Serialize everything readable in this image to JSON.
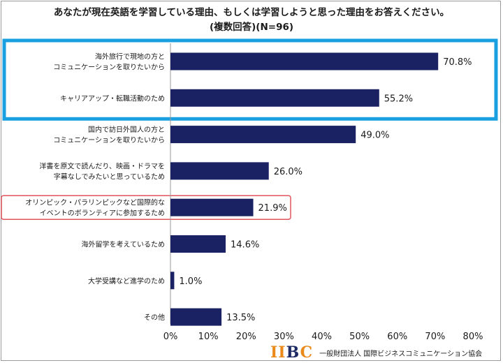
{
  "title": "あなたが現在英語を学習している理由、もしくは学習しようと思った理由をお答えください。",
  "subtitle": "(複数回答)(N=96)",
  "chart_data": {
    "type": "bar",
    "orientation": "horizontal",
    "categories": [
      [
        "海外旅行で現地の方と",
        "コミュニケーションを取りたいから"
      ],
      [
        "キャリアアップ・転職活動のため"
      ],
      [
        "国内で訪日外国人の方と",
        "コミュニケーションを取りたいから"
      ],
      [
        "洋書を原文で読んだり、映画・ドラマを",
        "字幕なしでみたいと思っているため"
      ],
      [
        "オリンピック・パラリンピックなど国際的な",
        "イベントのボランティアに参加するため"
      ],
      [
        "海外留学を考えているため"
      ],
      [
        "大学受講など進学のため"
      ],
      [
        "その他"
      ]
    ],
    "values": [
      70.8,
      55.2,
      49.0,
      26.0,
      21.9,
      14.6,
      1.0,
      13.5
    ],
    "value_labels": [
      "70.8%",
      "55.2%",
      "49.0%",
      "26.0%",
      "21.9%",
      "14.6%",
      "1.0%",
      "13.5%"
    ],
    "xlim": [
      0,
      80
    ],
    "xticks": [
      "0%",
      "10%",
      "20%",
      "30%",
      "40%",
      "50%",
      "60%",
      "70%",
      "80%"
    ],
    "bar_color": "#1b2263",
    "highlight_blue": {
      "rows": [
        0,
        1
      ],
      "color": "#1aa0e0"
    },
    "highlight_red": {
      "rows": [
        4
      ],
      "color": "#e0565c"
    },
    "grid": false
  },
  "footer": {
    "logo": [
      "I",
      "I",
      "B",
      "C"
    ],
    "org": "一般財団法人 国際ビジネスコミュニケーション協会"
  }
}
